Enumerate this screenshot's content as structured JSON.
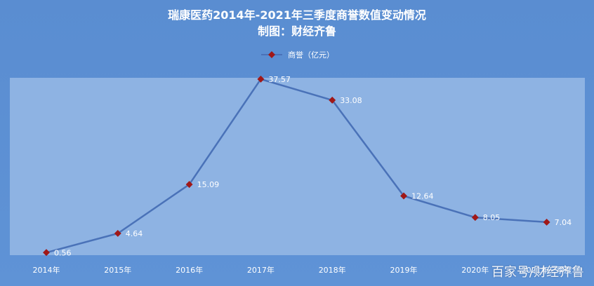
{
  "title_line1": "瑞康医药2014年-2021年三季度商誉数值变动情况",
  "title_line2": "制图：财经齐鲁",
  "watermark": "百家号/财经齐鲁",
  "colors": {
    "background": "#5b8fd2",
    "plot_area": "#8eb3e3",
    "line": "#4a72b8",
    "marker": "#a01818",
    "text": "#ffffff"
  },
  "chart_data": {
    "type": "line",
    "categories": [
      "2014年",
      "2015年",
      "2016年",
      "2017年",
      "2018年",
      "2019年",
      "2020年",
      "2021年三季度"
    ],
    "series": [
      {
        "name": "商誉（亿元）",
        "values": [
          0.56,
          4.64,
          15.09,
          37.57,
          33.08,
          12.64,
          8.05,
          7.04
        ]
      }
    ],
    "data_labels": [
      "0.56",
      "4.64",
      "15.09",
      "37.57",
      "33.08",
      "12.64",
      "8.05",
      "7.04"
    ],
    "ylim": [
      0,
      38
    ],
    "grid": false,
    "legend_position": "top"
  }
}
